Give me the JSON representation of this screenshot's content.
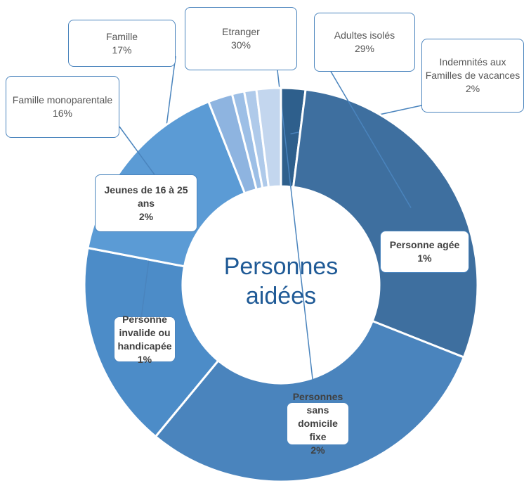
{
  "chart_data": {
    "type": "donut",
    "center_label": "Personnes aidées",
    "categories": [
      "Indemnités aux Familles de vacances",
      "Adultes isolés",
      "Etranger",
      "Famille",
      "Famille monoparentale",
      "Jeunes de 16 à 25 ans",
      "Personne agée",
      "Personne invalide ou handicapée",
      "Personnes sans domicile fixe"
    ],
    "values": [
      2,
      29,
      30,
      17,
      16,
      2,
      1,
      1,
      2
    ],
    "value_labels": [
      "2%",
      "29%",
      "30%",
      "17%",
      "16%",
      "2%",
      "1%",
      "1%",
      "2%"
    ],
    "colors": [
      "#2e5f8c",
      "#3e6f9f",
      "#4a84bd",
      "#4c8cc8",
      "#5b9bd5",
      "#8eb4e0",
      "#9dbfe6",
      "#afcaea",
      "#c3d6ee"
    ]
  }
}
